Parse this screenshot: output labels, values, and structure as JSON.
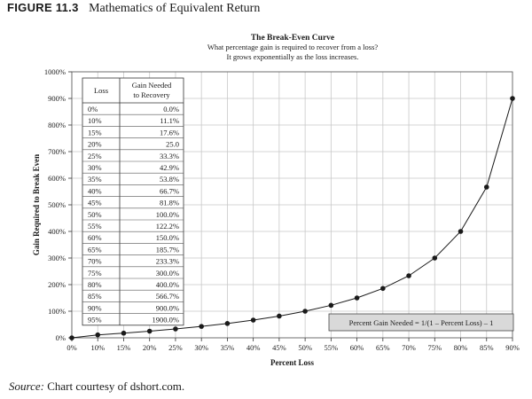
{
  "figure": {
    "label": "FIGURE 11.3",
    "title": "Mathematics of Equivalent Return"
  },
  "source": {
    "prefix": "Source:",
    "text": "Chart courtesy of dshort.com."
  },
  "chart_data": {
    "type": "line",
    "title": "The Break-Even Curve",
    "subtitle_lines": [
      "What percentage gain is required to recover from a loss?",
      "It grows exponentially as the loss increases."
    ],
    "xlabel": "Percent Loss",
    "ylabel": "Gain Required to Break Even",
    "x": [
      0,
      10,
      15,
      20,
      25,
      30,
      35,
      40,
      45,
      50,
      55,
      60,
      65,
      70,
      75,
      80,
      85,
      90
    ],
    "x_ticks": [
      "0%",
      "10%",
      "15%",
      "20%",
      "25%",
      "30%",
      "35%",
      "40%",
      "45%",
      "50%",
      "55%",
      "60%",
      "65%",
      "70%",
      "75%",
      "80%",
      "85%",
      "90%"
    ],
    "series": [
      {
        "values": [
          0,
          11.1,
          17.6,
          25,
          33.3,
          42.9,
          53.8,
          66.7,
          81.8,
          100,
          122.2,
          150,
          185.7,
          233.3,
          300,
          400,
          566.7,
          900
        ]
      }
    ],
    "ylim": [
      0,
      1000
    ],
    "y_ticks": [
      0,
      100,
      200,
      300,
      400,
      500,
      600,
      700,
      800,
      900,
      1000
    ],
    "y_tick_labels": [
      "0%",
      "100%",
      "200%",
      "300%",
      "400%",
      "500%",
      "600%",
      "700%",
      "800%",
      "900%",
      "1000%"
    ],
    "grid": true,
    "colors": {
      "line": "#1a1a1a",
      "grid": "#c8c8c8",
      "formula_box": "#d9d9d9"
    },
    "formula": "Percent  Gain Needed = 1/(1 – Percent Loss) – 1",
    "table": {
      "headers": [
        "Loss",
        "Gain Needed to Recovery"
      ],
      "rows": [
        [
          "0%",
          "0.0%"
        ],
        [
          "10%",
          "11.1%"
        ],
        [
          "15%",
          "17.6%"
        ],
        [
          "20%",
          "25.0"
        ],
        [
          "25%",
          "33.3%"
        ],
        [
          "30%",
          "42.9%"
        ],
        [
          "35%",
          "53.8%"
        ],
        [
          "40%",
          "66.7%"
        ],
        [
          "45%",
          "81.8%"
        ],
        [
          "50%",
          "100.0%"
        ],
        [
          "55%",
          "122.2%"
        ],
        [
          "60%",
          "150.0%"
        ],
        [
          "65%",
          "185.7%"
        ],
        [
          "70%",
          "233.3%"
        ],
        [
          "75%",
          "300.0%"
        ],
        [
          "80%",
          "400.0%"
        ],
        [
          "85%",
          "566.7%"
        ],
        [
          "90%",
          "900.0%"
        ],
        [
          "95%",
          "1900.0%"
        ]
      ]
    }
  }
}
